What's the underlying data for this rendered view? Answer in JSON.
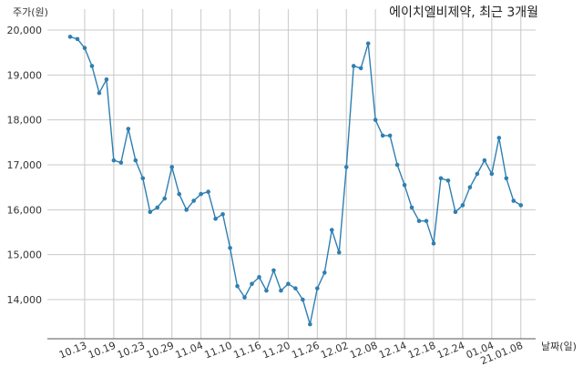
{
  "chart_data": {
    "type": "line",
    "title": "에이치엘비제약, 최근 3개월",
    "ylabel": "주가(원)",
    "xlabel": "날짜(일)",
    "ylim": [
      13200,
      20200
    ],
    "yticks": [
      14000,
      15000,
      16000,
      17000,
      18000,
      19000,
      20000
    ],
    "ytick_labels": [
      "14,000",
      "15,000",
      "16,000",
      "17,000",
      "18,000",
      "19,000",
      "20,000"
    ],
    "xtick_labels": [
      "10.13",
      "10.19",
      "10.23",
      "10.29",
      "11.04",
      "11.10",
      "11.16",
      "11.20",
      "11.26",
      "12.02",
      "12.08",
      "12.14",
      "12.18",
      "12.24",
      "01.04",
      "21.01.08"
    ],
    "xtick_indices": [
      2,
      6,
      10,
      14,
      18,
      22,
      26,
      30,
      34,
      38,
      42,
      46,
      50,
      54,
      58,
      62
    ],
    "grid": true,
    "colors": {
      "line": "#2f7fb1",
      "marker": "#2f7fb1",
      "grid": "#c8c8c8",
      "axis": "#555555"
    },
    "series": [
      {
        "values": [
          19850,
          19800,
          19600,
          19200,
          18600,
          18900,
          17100,
          17050,
          17800,
          17100,
          16700,
          15950,
          16050,
          16250,
          16950,
          16350,
          16000,
          16200,
          16350,
          16400,
          15800,
          15900,
          15150,
          14300,
          14050,
          14350,
          14500,
          14200,
          14650,
          14200,
          14350,
          14250,
          14000,
          13450,
          14250,
          14600,
          15550,
          15050,
          16950,
          19200,
          19150,
          19700,
          18000,
          17650,
          17650,
          17000,
          16550,
          16050,
          15750,
          15750,
          15250,
          16700,
          16650,
          15950,
          16100,
          16500,
          16800,
          17100,
          16800,
          17600,
          16700,
          16200,
          16100
        ]
      }
    ]
  }
}
